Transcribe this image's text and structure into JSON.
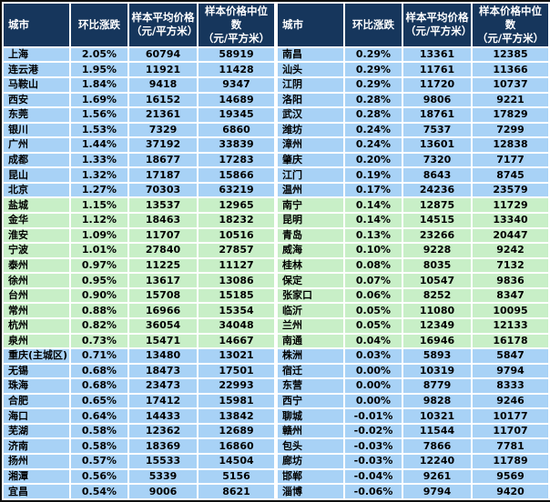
{
  "colors": {
    "header_bg": "#16365C",
    "header_text": "#FFFFFF",
    "row_blue": "#A8D2F6",
    "row_green": "#C8EFC7",
    "cell_text": "#000000",
    "cell_border": "#FFFFFF",
    "frame_border": "#101010"
  },
  "chart_data": [
    {
      "type": "table",
      "columns": [
        "城市",
        "环比涨跌",
        "样本平均价格\n（元/平方米）",
        "样本价格中位数\n（元/平方米）"
      ],
      "rows": [
        [
          "上海",
          "2.05%",
          60794,
          58919
        ],
        [
          "连云港",
          "1.95%",
          11921,
          11428
        ],
        [
          "马鞍山",
          "1.84%",
          9418,
          9347
        ],
        [
          "西安",
          "1.69%",
          16152,
          14689
        ],
        [
          "东莞",
          "1.56%",
          21361,
          19345
        ],
        [
          "银川",
          "1.53%",
          7329,
          6860
        ],
        [
          "广州",
          "1.44%",
          37192,
          33839
        ],
        [
          "成都",
          "1.33%",
          18677,
          17283
        ],
        [
          "昆山",
          "1.32%",
          17187,
          15866
        ],
        [
          "北京",
          "1.27%",
          70303,
          63219
        ],
        [
          "盐城",
          "1.15%",
          13537,
          12965
        ],
        [
          "金华",
          "1.12%",
          18463,
          18232
        ],
        [
          "淮安",
          "1.09%",
          11707,
          10516
        ],
        [
          "宁波",
          "1.01%",
          27840,
          27857
        ],
        [
          "泰州",
          "0.97%",
          11225,
          11127
        ],
        [
          "徐州",
          "0.95%",
          13617,
          13086
        ],
        [
          "台州",
          "0.90%",
          15708,
          15185
        ],
        [
          "常州",
          "0.88%",
          16966,
          15354
        ],
        [
          "杭州",
          "0.82%",
          36054,
          34048
        ],
        [
          "泉州",
          "0.73%",
          15471,
          14667
        ],
        [
          "重庆(主城区)",
          "0.71%",
          13480,
          13021
        ],
        [
          "无锡",
          "0.68%",
          18473,
          17501
        ],
        [
          "珠海",
          "0.68%",
          23473,
          22993
        ],
        [
          "合肥",
          "0.65%",
          17412,
          15981
        ],
        [
          "海口",
          "0.64%",
          14433,
          13842
        ],
        [
          "芜湖",
          "0.58%",
          12362,
          12689
        ],
        [
          "济南",
          "0.58%",
          18369,
          16860
        ],
        [
          "扬州",
          "0.57%",
          15533,
          14504
        ],
        [
          "湘潭",
          "0.56%",
          5339,
          5156
        ],
        [
          "宜昌",
          "0.54%",
          9006,
          8621
        ]
      ]
    },
    {
      "type": "table",
      "columns": [
        "城市",
        "环比涨跌",
        "样本平均价格\n（元/平方米）",
        "样本价格中位数\n（元/平方米）"
      ],
      "rows": [
        [
          "南昌",
          "0.29%",
          13361,
          12385
        ],
        [
          "汕头",
          "0.29%",
          11761,
          11366
        ],
        [
          "江阴",
          "0.29%",
          11720,
          10737
        ],
        [
          "洛阳",
          "0.28%",
          9806,
          9221
        ],
        [
          "武汉",
          "0.28%",
          18761,
          17829
        ],
        [
          "潍坊",
          "0.24%",
          7537,
          7299
        ],
        [
          "漳州",
          "0.24%",
          13601,
          12838
        ],
        [
          "肇庆",
          "0.20%",
          7320,
          7177
        ],
        [
          "江门",
          "0.19%",
          8643,
          8745
        ],
        [
          "温州",
          "0.17%",
          24236,
          23579
        ],
        [
          "南宁",
          "0.14%",
          12875,
          11729
        ],
        [
          "昆明",
          "0.14%",
          14515,
          13340
        ],
        [
          "青岛",
          "0.13%",
          23266,
          20447
        ],
        [
          "威海",
          "0.10%",
          9228,
          9242
        ],
        [
          "桂林",
          "0.08%",
          8035,
          7132
        ],
        [
          "保定",
          "0.07%",
          10547,
          9836
        ],
        [
          "张家口",
          "0.06%",
          8252,
          8347
        ],
        [
          "临沂",
          "0.05%",
          11080,
          10095
        ],
        [
          "兰州",
          "0.05%",
          12349,
          12133
        ],
        [
          "南通",
          "0.04%",
          16946,
          16178
        ],
        [
          "株洲",
          "0.03%",
          5893,
          5847
        ],
        [
          "宿迁",
          "0.00%",
          10319,
          9794
        ],
        [
          "东营",
          "0.00%",
          8779,
          8333
        ],
        [
          "西宁",
          "0.00%",
          9828,
          9246
        ],
        [
          "聊城",
          "-0.01%",
          10321,
          10177
        ],
        [
          "赣州",
          "-0.02%",
          11544,
          11707
        ],
        [
          "包头",
          "-0.03%",
          7866,
          7781
        ],
        [
          "廊坊",
          "-0.03%",
          12240,
          11789
        ],
        [
          "邯郸",
          "-0.04%",
          9261,
          9569
        ],
        [
          "淄博",
          "-0.06%",
          9794,
          9420
        ]
      ]
    }
  ]
}
